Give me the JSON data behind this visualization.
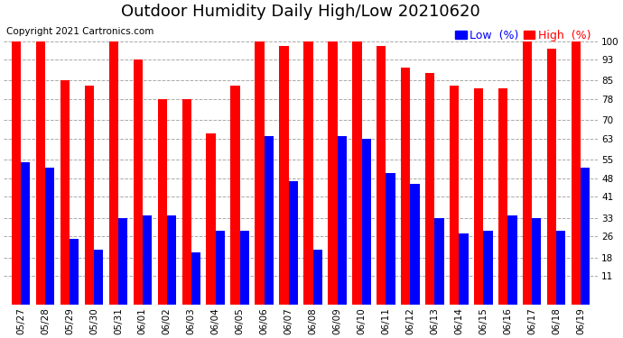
{
  "title": "Outdoor Humidity Daily High/Low 20210620",
  "copyright": "Copyright 2021 Cartronics.com",
  "legend_low": "Low  (%)",
  "legend_high": "High  (%)",
  "dates": [
    "05/27",
    "05/28",
    "05/29",
    "05/30",
    "05/31",
    "06/01",
    "06/02",
    "06/03",
    "06/04",
    "06/05",
    "06/06",
    "06/07",
    "06/08",
    "06/09",
    "06/10",
    "06/11",
    "06/12",
    "06/13",
    "06/14",
    "06/15",
    "06/16",
    "06/17",
    "06/18",
    "06/19"
  ],
  "high": [
    100,
    100,
    85,
    83,
    100,
    93,
    78,
    78,
    65,
    83,
    100,
    98,
    100,
    100,
    100,
    98,
    90,
    88,
    83,
    82,
    82,
    100,
    97,
    100
  ],
  "low": [
    54,
    52,
    25,
    21,
    33,
    34,
    34,
    20,
    28,
    28,
    64,
    47,
    21,
    64,
    63,
    50,
    46,
    33,
    27,
    28,
    34,
    33,
    28,
    52
  ],
  "bar_color_high": "#ff0000",
  "bar_color_low": "#0000ff",
  "background_color": "#ffffff",
  "grid_color": "#aaaaaa",
  "yticks": [
    11,
    18,
    26,
    33,
    41,
    48,
    55,
    63,
    70,
    78,
    85,
    93,
    100
  ],
  "ylim": [
    0,
    107
  ],
  "title_fontsize": 13,
  "copyright_fontsize": 7.5,
  "legend_fontsize": 9,
  "tick_fontsize": 7.5,
  "bar_width": 0.38
}
